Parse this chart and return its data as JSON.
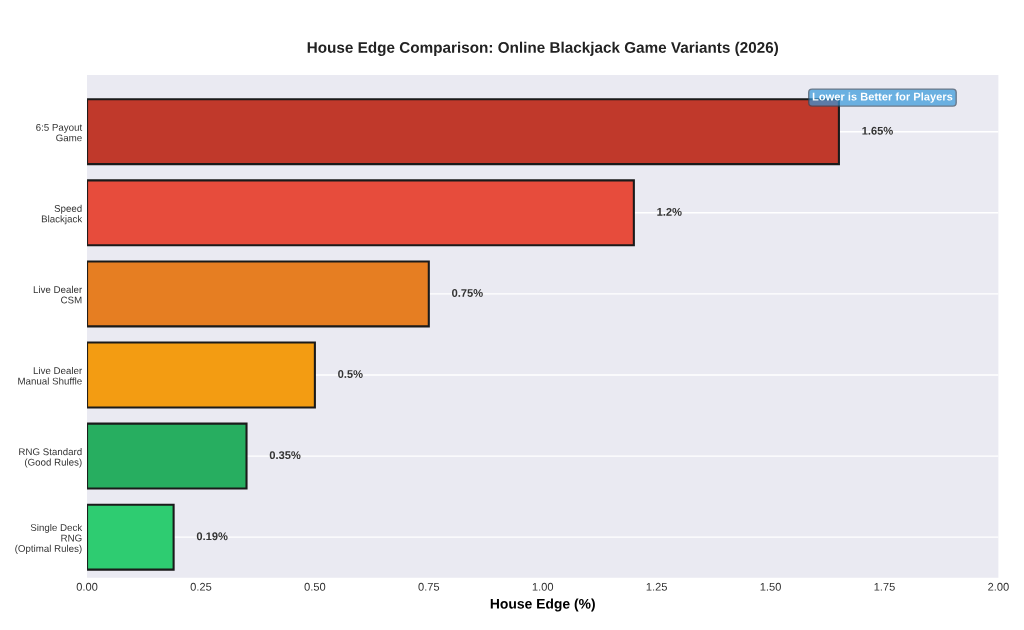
{
  "chart_data": {
    "type": "bar",
    "orientation": "horizontal",
    "title": "House Edge Comparison: Online Blackjack Game Variants (2026)",
    "xlabel": "House Edge (%)",
    "categories": [
      "6:5 Payout\nGame",
      "Speed\nBlackjack",
      "Live Dealer\nCSM",
      "Live Dealer\nManual Shuffle",
      "RNG Standard\n(Good Rules)",
      "Single Deck\nRNG\n(Optimal Rules)"
    ],
    "values": [
      1.65,
      1.2,
      0.75,
      0.5,
      0.35,
      0.19
    ],
    "colors": [
      "#c0392b",
      "#e74c3c",
      "#e67e22",
      "#f39c12",
      "#27ae60",
      "#2ecc71"
    ],
    "value_labels": [
      "1.65%",
      "1.2%",
      "0.75%",
      "0.5%",
      "0.35%",
      "0.19%"
    ],
    "xlim": [
      0,
      2.0
    ],
    "xticks": [
      {
        "value": 0,
        "label": "0.00"
      },
      {
        "value": 0.25,
        "label": "0.25"
      },
      {
        "value": 0.5,
        "label": "0.50"
      },
      {
        "value": 0.75,
        "label": "0.75"
      },
      {
        "value": 1.0,
        "label": "1.00"
      },
      {
        "value": 1.25,
        "label": "1.25"
      },
      {
        "value": 1.5,
        "label": "1.50"
      },
      {
        "value": 1.75,
        "label": "1.75"
      },
      {
        "value": 2.0,
        "label": "2.00"
      }
    ],
    "grid": "y",
    "annotations": [
      "Lower is Better for Players"
    ]
  }
}
